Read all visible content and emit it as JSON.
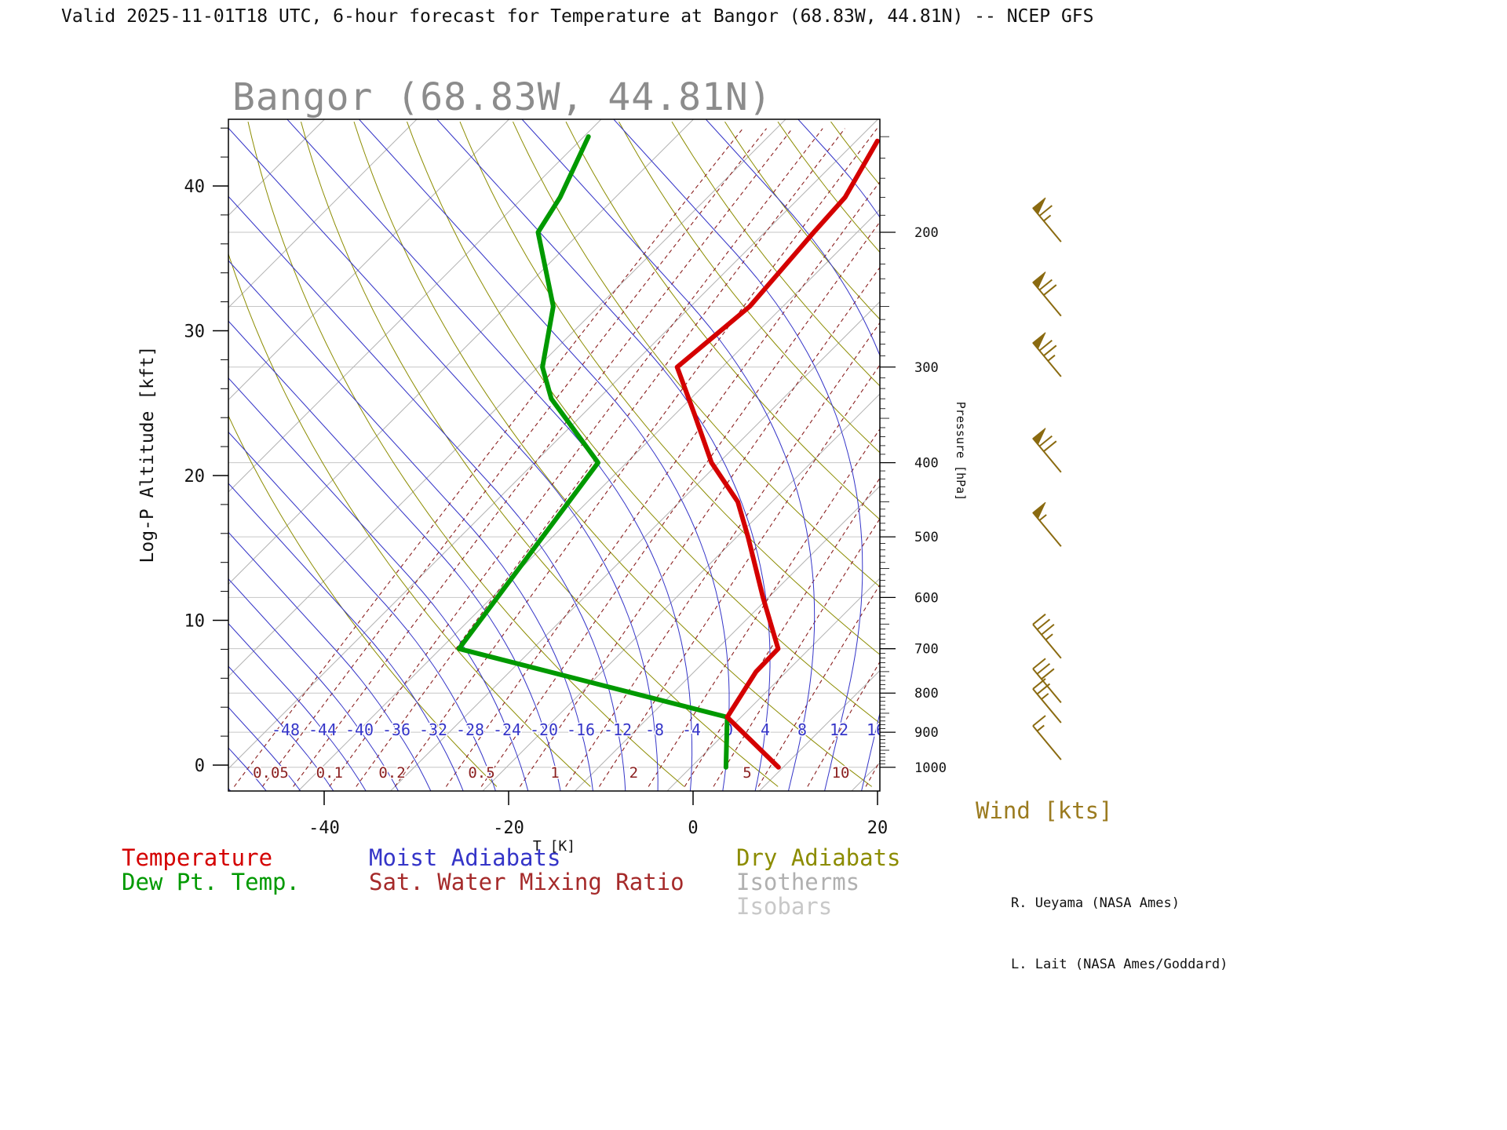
{
  "header": {
    "title": "Valid 2025-11-01T18 UTC, 6-hour forecast for Temperature at Bangor (68.83W, 44.81N) -- NCEP GFS"
  },
  "chart": {
    "title": "Bangor (68.83W, 44.81N)",
    "y_axis": {
      "label": "Log-P Altitude [kft]",
      "ticks": [
        0,
        10,
        20,
        30,
        40
      ]
    },
    "x_axis": {
      "label": "T [K]",
      "ticks": [
        -40,
        -20,
        0,
        20
      ]
    },
    "pressure_axis": {
      "label": "Pressure [hPa]",
      "ticks": [
        200,
        300,
        400,
        500,
        600,
        700,
        800,
        900,
        1000
      ]
    },
    "moist_adiabat_labels": [
      -48,
      -44,
      -40,
      -36,
      -32,
      -28,
      -24,
      -20,
      -16,
      -12,
      -8,
      -4,
      0,
      4,
      8,
      12,
      16
    ],
    "mixing_ratio_labels": [
      "0.05",
      "0.1",
      "0.2",
      "0.5",
      "1",
      "2",
      "5",
      "10"
    ],
    "wind_title": "Wind [kts]",
    "legend": [
      {
        "label": "Temperature",
        "color": "#d40000"
      },
      {
        "label": "Dew Pt. Temp.",
        "color": "#009900"
      },
      {
        "label": "Moist Adiabats",
        "color": "#3535c8"
      },
      {
        "label": "Sat. Water Mixing Ratio",
        "color": "#a52a2a"
      },
      {
        "label": "Dry Adiabats",
        "color": "#8c8c00"
      },
      {
        "label": "Isotherms",
        "color": "#b0b0b0"
      },
      {
        "label": "Isobars",
        "color": "#c8c8c8"
      }
    ],
    "credits": [
      "R. Ueyama (NASA Ames)",
      "L. Lait (NASA Ames/Goddard)"
    ]
  },
  "chart_data": {
    "type": "skewt",
    "station": "Bangor",
    "longitude": "68.83W",
    "latitude": "44.81N",
    "model": "NCEP GFS",
    "valid_time": "2025-11-01T18 UTC",
    "forecast_hours": 6,
    "xlim_degC": [
      -50,
      20
    ],
    "ylim_kft": [
      0,
      44
    ],
    "pressure_lim_hPa": [
      150,
      1000
    ],
    "temperature_profile": [
      [
        1000,
        9.5
      ],
      [
        860,
        -1.5
      ],
      [
        750,
        -3.3
      ],
      [
        700,
        -3.4
      ],
      [
        600,
        -10.6
      ],
      [
        500,
        -18.8
      ],
      [
        450,
        -23.7
      ],
      [
        400,
        -30.8
      ],
      [
        345,
        -38.0
      ],
      [
        300,
        -44.9
      ],
      [
        250,
        -43.6
      ],
      [
        200,
        -44.7
      ],
      [
        180,
        -45.1
      ],
      [
        152,
        -47.7
      ]
    ],
    "dewpoint_profile": [
      [
        1000,
        3.8
      ],
      [
        860,
        -1.5
      ],
      [
        700,
        -38.0
      ],
      [
        400,
        -43.1
      ],
      [
        330,
        -55.1
      ],
      [
        300,
        -59.5
      ],
      [
        250,
        -64.9
      ],
      [
        200,
        -74.6
      ],
      [
        180,
        -76.0
      ],
      [
        150,
        -79.5
      ]
    ],
    "winds": [
      {
        "p": 200,
        "kts": 65
      },
      {
        "p": 250,
        "kts": 70
      },
      {
        "p": 300,
        "kts": 75
      },
      {
        "p": 400,
        "kts": 70
      },
      {
        "p": 500,
        "kts": 55
      },
      {
        "p": 700,
        "kts": 35
      },
      {
        "p": 800,
        "kts": 30
      },
      {
        "p": 850,
        "kts": 25
      },
      {
        "p": 950,
        "kts": 15
      }
    ]
  },
  "colors": {
    "temperature": "#d40000",
    "dewpoint": "#009900",
    "moist_adiabats": "#3535c8",
    "dry_adiabats": "#8c8c00",
    "isotherms": "#b4b4b4",
    "isobars": "#c6c6c6",
    "mixing_ratio": "#8b2020",
    "wind_barbs": "#8a6a10",
    "axis": "#000000"
  }
}
